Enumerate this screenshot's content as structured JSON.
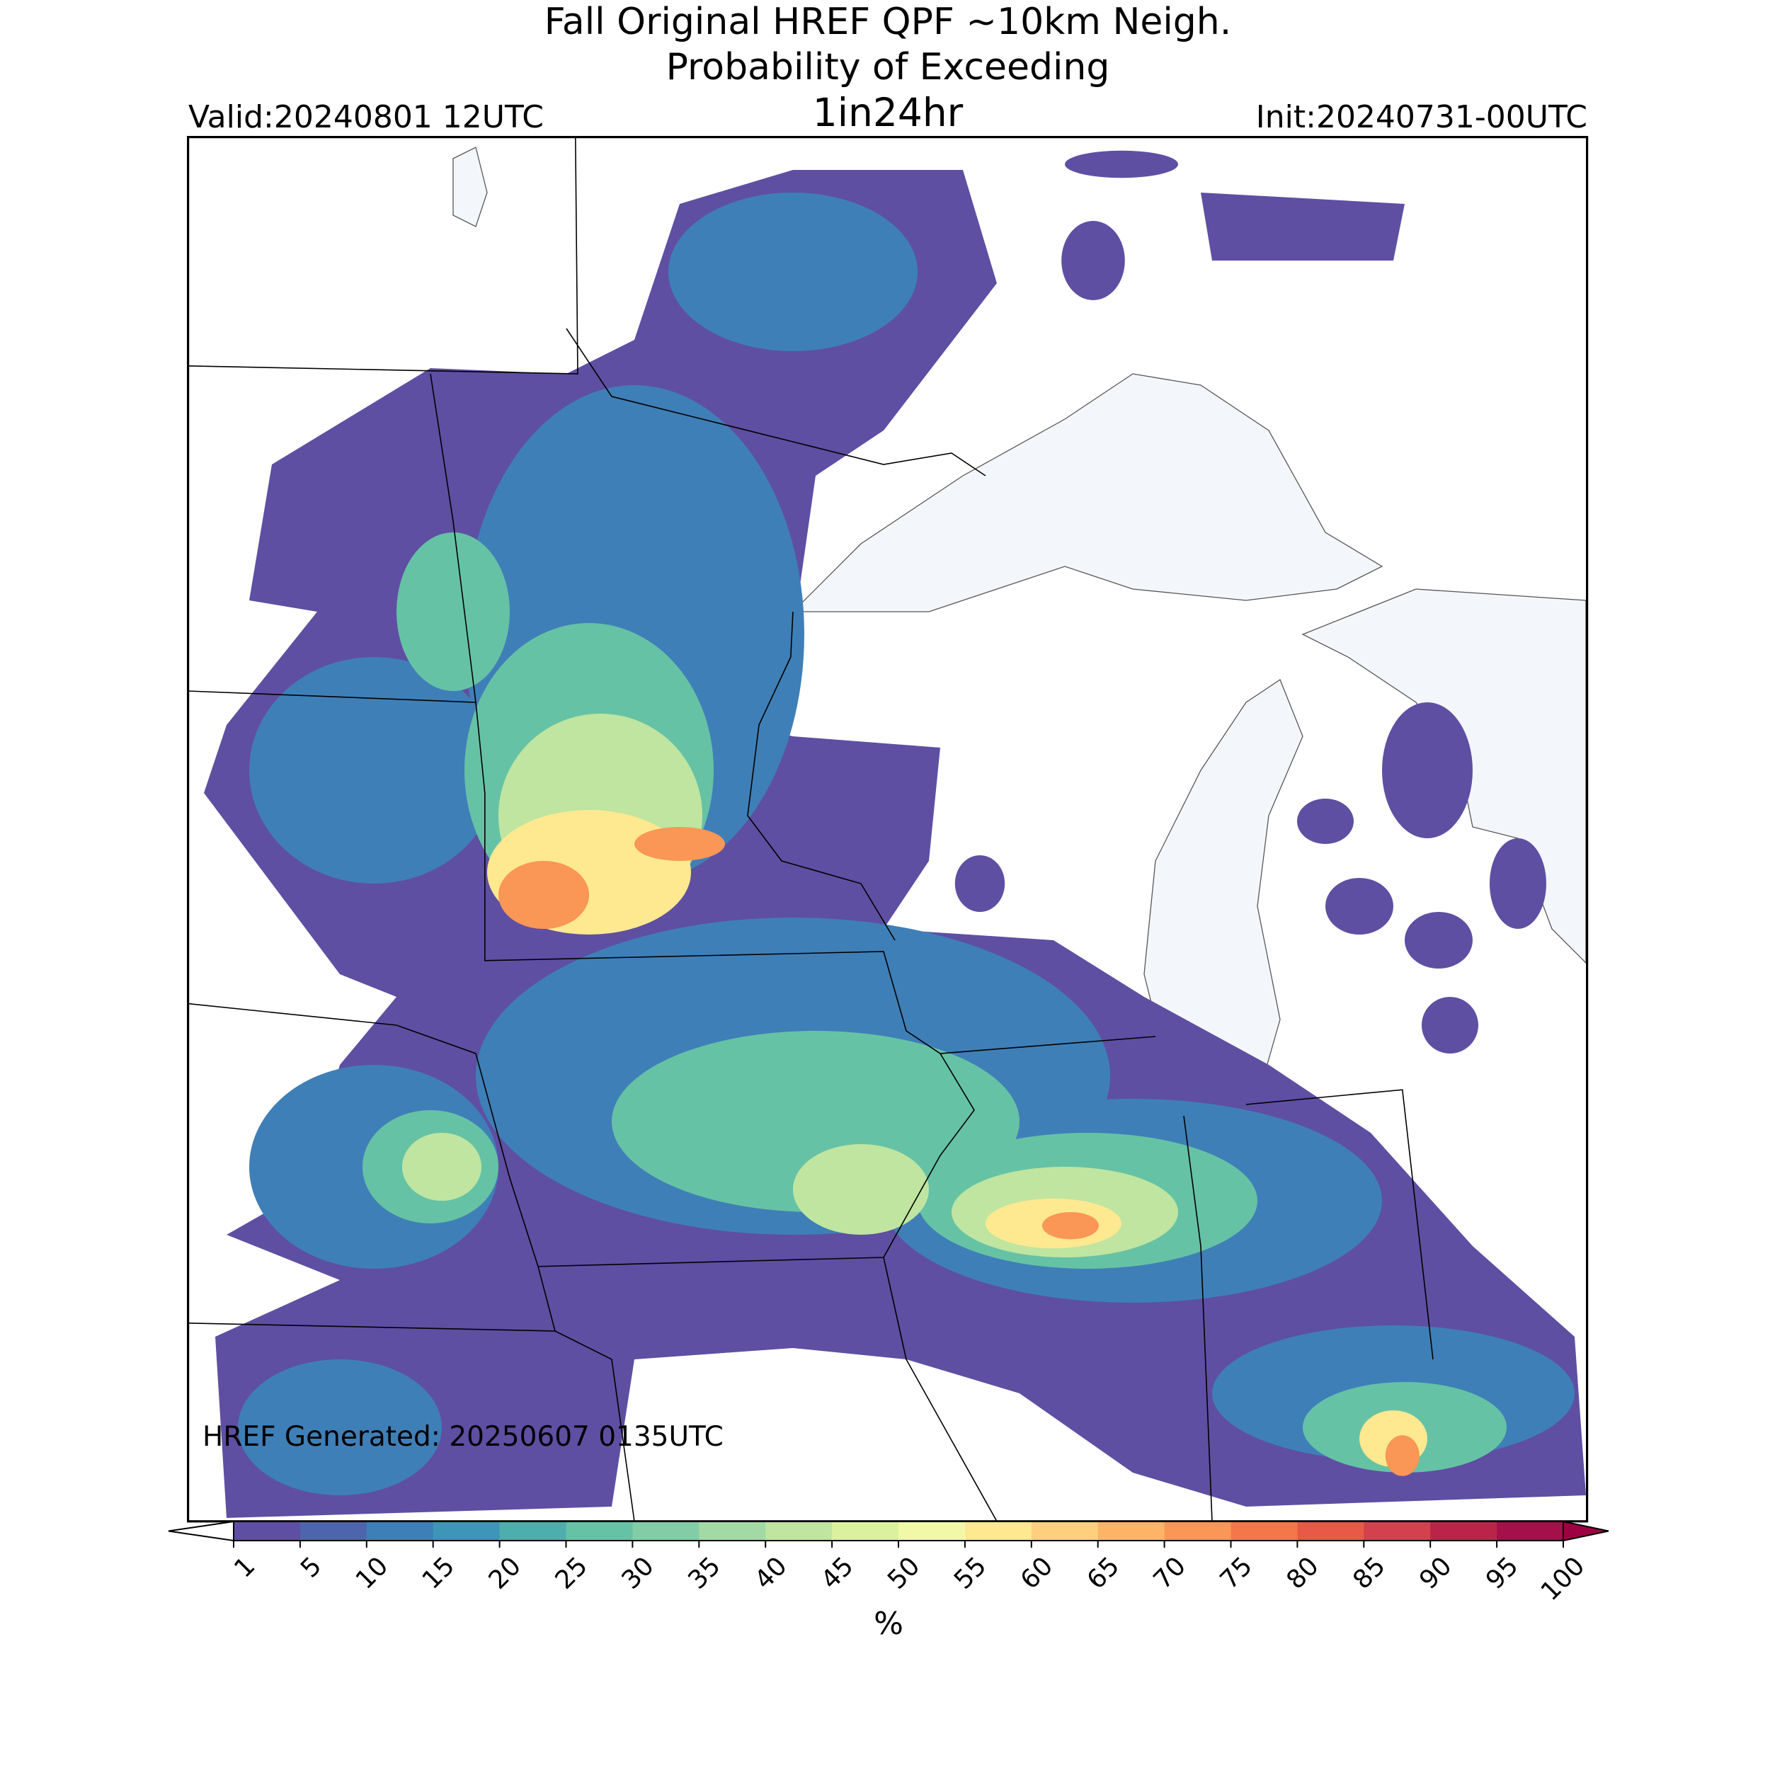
{
  "title": "Fall Original HREF QPF ~10km Neigh.",
  "subtitle": "Probability of Exceeding",
  "threshold": "1in24hr",
  "valid": "Valid:20240801 12UTC",
  "init": "Init:20240731-00UTC",
  "footer": "HREF Generated: 20250607 0135UTC",
  "colorbar": {
    "label": "%",
    "ticks": [
      1,
      5,
      10,
      15,
      20,
      25,
      30,
      35,
      40,
      45,
      50,
      55,
      60,
      65,
      70,
      75,
      80,
      85,
      90,
      95,
      100
    ],
    "colors": [
      "#5e4fa2",
      "#4d65ad",
      "#3f7fb7",
      "#3d96b7",
      "#4daeae",
      "#66c2a5",
      "#82cda5",
      "#a2d9a4",
      "#bfe5a0",
      "#dbf1a0",
      "#f1f9a9",
      "#fee890",
      "#fed07e",
      "#fdb466",
      "#fa9656",
      "#f4774a",
      "#e65a47",
      "#d3404e",
      "#bb2449",
      "#a3104a"
    ],
    "under_color": "#ffffff",
    "over_color": "#9e0142"
  }
}
